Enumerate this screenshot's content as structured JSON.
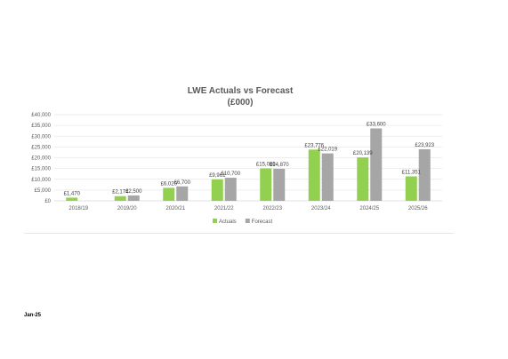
{
  "footer": {
    "date_label": "Jan-25"
  },
  "chart_data": {
    "type": "bar",
    "title": "LWE Actuals vs Forecast",
    "subtitle": "(£000)",
    "categories": [
      "2018/19",
      "2019/20",
      "2020/21",
      "2021/22",
      "2022/23",
      "2023/24",
      "2024/25",
      "2025/26"
    ],
    "series": [
      {
        "name": "Actuals",
        "color": "#92d050",
        "values": [
          1470,
          2174,
          6020,
          9961,
          15080,
          23776,
          20139,
          11351
        ],
        "labels": [
          "£1,470",
          "£2,174",
          "£6,020",
          "£9,961",
          "£15,080",
          "£23,776",
          "£20,139",
          "£11,351"
        ]
      },
      {
        "name": "Forecast",
        "color": "#a6a6a6",
        "values": [
          null,
          2500,
          6700,
          10700,
          14870,
          22019,
          33600,
          23923
        ],
        "labels": [
          null,
          "£2,500",
          "£6,700",
          "£10,700",
          "£14,870",
          "£22,019",
          "£33,600",
          "£23,923"
        ]
      }
    ],
    "yticks": [
      "£0",
      "£5,000",
      "£10,000",
      "£15,000",
      "£20,000",
      "£25,000",
      "£30,000",
      "£35,000",
      "£40,000"
    ],
    "ylim": [
      0,
      40000
    ],
    "grid": true,
    "legend_position": "bottom"
  }
}
